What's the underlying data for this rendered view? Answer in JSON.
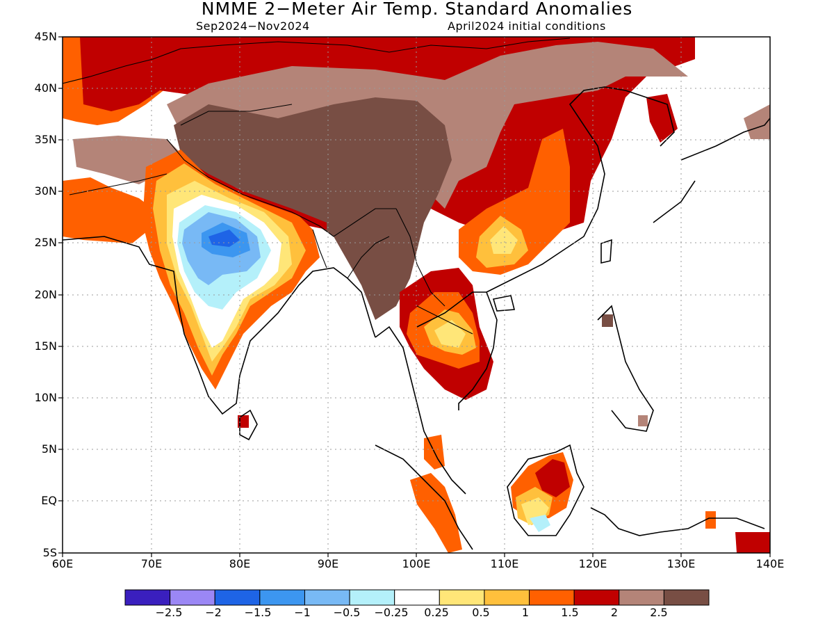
{
  "title": "NMME 2−Meter Air Temp. Standard Anomalies",
  "subtitle_left": "Sep2024−Nov2024",
  "subtitle_right": "April2024 initial conditions",
  "map_data": {
    "lon_range": [
      60,
      140
    ],
    "lat_range": [
      -5,
      45
    ],
    "x_ticks": [
      "60E",
      "70E",
      "80E",
      "90E",
      "100E",
      "110E",
      "120E",
      "130E",
      "140E"
    ],
    "y_ticks": [
      "45N",
      "40N",
      "35N",
      "30N",
      "25N",
      "20N",
      "15N",
      "10N",
      "5N",
      "EQ",
      "5S"
    ],
    "gridlines": "dotted",
    "grid_lon_step": 10,
    "grid_lat_step": 5
  },
  "legend": {
    "colors": [
      "#3a1fbe",
      "#9b87f5",
      "#1e64e6",
      "#3c96f0",
      "#78b9f5",
      "#b4f0fa",
      "#ffffff",
      "#ffe678",
      "#ffc03c",
      "#ff6000",
      "#c00000",
      "#b48478",
      "#784e44"
    ],
    "labels": [
      "−2.5",
      "−2",
      "−1.5",
      "−1",
      "−0.5",
      "−0.25",
      "0.25",
      "0.5",
      "1",
      "1.5",
      "2",
      "2.5"
    ]
  }
}
